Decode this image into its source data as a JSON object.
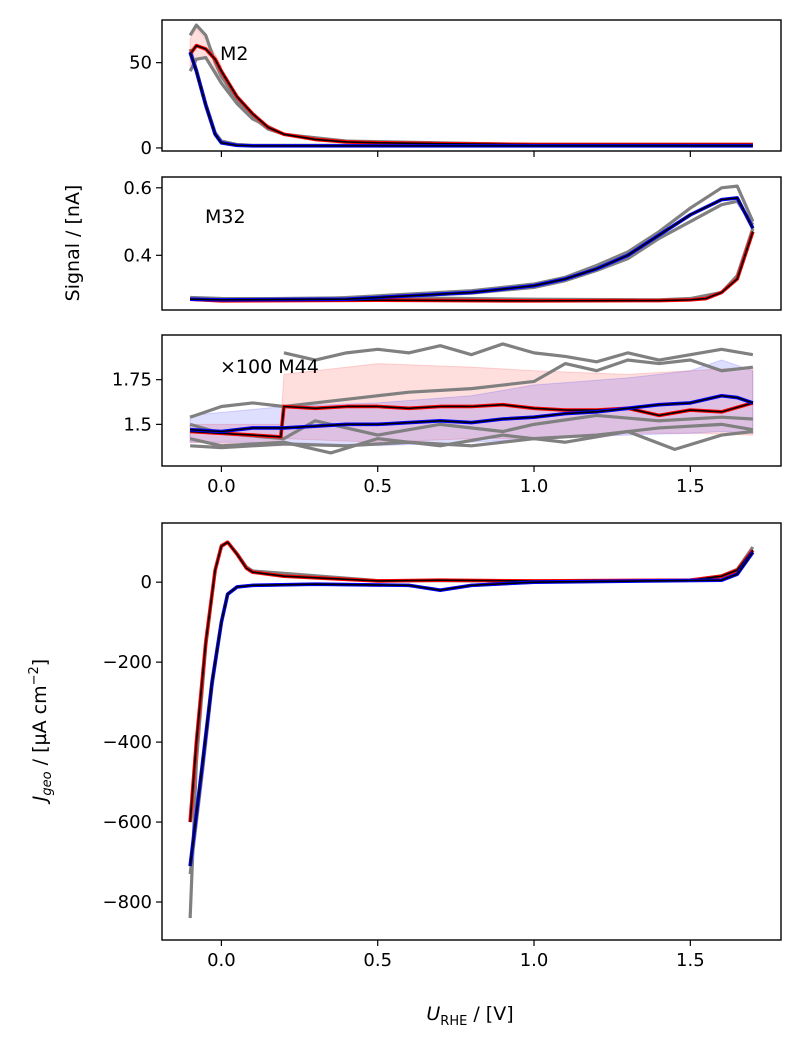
{
  "chart_data": [
    {
      "type": "line",
      "annotation": "M2",
      "ylim": [
        -1.8,
        75
      ],
      "yticks": [
        0,
        50
      ],
      "xlim": [
        -0.19,
        1.79
      ],
      "xticks": [
        0.0,
        0.5,
        1.0,
        1.5
      ],
      "show_xtick_labels": false,
      "grid": false,
      "series": [
        {
          "color": "#808080",
          "x": [
            -0.1,
            -0.08,
            -0.05,
            -0.02,
            0,
            0.05,
            0.1,
            0.15,
            0.2,
            0.3,
            0.5,
            1.0,
            1.7
          ],
          "y": [
            66,
            72,
            66,
            50,
            42,
            28,
            18,
            11,
            8,
            5,
            3,
            2,
            2
          ]
        },
        {
          "color": "#808080",
          "x": [
            -0.1,
            -0.08,
            -0.05,
            -0.02,
            0,
            0.05,
            0.1,
            0.2,
            0.4,
            1.0,
            1.7
          ],
          "y": [
            45,
            52,
            53,
            44,
            38,
            26,
            17,
            8,
            4,
            2,
            2
          ]
        },
        {
          "color": "#808080",
          "x": [
            -0.1,
            -0.08,
            -0.05,
            -0.02,
            0,
            0.05,
            0.1,
            0.3,
            1.0,
            1.7
          ],
          "y": [
            58,
            46,
            26,
            9,
            4,
            2,
            1.5,
            1.5,
            1.5,
            1.5
          ]
        },
        {
          "color": "#ff0000",
          "x": [
            -0.1,
            -0.08,
            -0.05,
            -0.02,
            0,
            0.05,
            0.1,
            0.15,
            0.2,
            0.3,
            0.4,
            0.5,
            0.7,
            1.0,
            1.7
          ],
          "y": [
            55,
            60,
            58,
            52,
            45,
            30,
            20,
            12,
            8,
            5,
            3.5,
            3,
            2.5,
            2,
            2
          ],
          "outline": "#000000"
        },
        {
          "color": "#0000ff",
          "x": [
            -0.1,
            -0.08,
            -0.05,
            -0.02,
            0,
            0.05,
            0.1,
            0.3,
            1.0,
            1.7
          ],
          "y": [
            56,
            45,
            25,
            8,
            3,
            1.5,
            1.2,
            1.2,
            1.2,
            1.2
          ],
          "outline": "#000000"
        }
      ],
      "bands": [
        {
          "color": "#ff0000",
          "x": [
            -0.1,
            -0.08,
            -0.05,
            -0.02,
            0
          ],
          "lower": [
            48,
            52,
            52,
            46,
            40
          ],
          "upper": [
            64,
            70,
            64,
            55,
            48
          ]
        }
      ]
    },
    {
      "type": "line",
      "annotation": "M32",
      "ylabel": "Signal / [nA]",
      "ylim": [
        0.238,
        0.632
      ],
      "yticks": [
        0.4,
        0.6
      ],
      "xlim": [
        -0.19,
        1.79
      ],
      "xticks": [],
      "grid": false,
      "series": [
        {
          "color": "#808080",
          "x": [
            -0.1,
            0,
            0.3,
            0.6,
            0.8,
            1.0,
            1.1,
            1.2,
            1.3,
            1.4,
            1.5,
            1.6,
            1.65,
            1.7
          ],
          "y": [
            0.275,
            0.272,
            0.27,
            0.285,
            0.295,
            0.315,
            0.335,
            0.37,
            0.41,
            0.47,
            0.54,
            0.6,
            0.605,
            0.5
          ]
        },
        {
          "color": "#808080",
          "x": [
            -0.1,
            0,
            0.3,
            0.6,
            0.8,
            1.0,
            1.1,
            1.2,
            1.3,
            1.4,
            1.5,
            1.6,
            1.65,
            1.7
          ],
          "y": [
            0.27,
            0.265,
            0.268,
            0.28,
            0.288,
            0.305,
            0.325,
            0.355,
            0.39,
            0.45,
            0.5,
            0.55,
            0.56,
            0.49
          ]
        },
        {
          "color": "#808080",
          "x": [
            -0.1,
            0.2,
            0.5,
            1.0,
            1.4,
            1.5,
            1.6,
            1.65,
            1.7
          ],
          "y": [
            0.27,
            0.272,
            0.275,
            0.27,
            0.268,
            0.272,
            0.29,
            0.34,
            0.48
          ]
        },
        {
          "color": "#ff0000",
          "x": [
            -0.1,
            0,
            0.2,
            0.5,
            1.0,
            1.4,
            1.5,
            1.55,
            1.6,
            1.65,
            1.7
          ],
          "y": [
            0.27,
            0.265,
            0.266,
            0.267,
            0.265,
            0.266,
            0.268,
            0.272,
            0.29,
            0.33,
            0.47
          ],
          "outline": "#000000"
        },
        {
          "color": "#0000ff",
          "x": [
            1.7,
            1.65,
            1.6,
            1.5,
            1.4,
            1.3,
            1.2,
            1.1,
            1.0,
            0.8,
            0.6,
            0.4,
            0,
            -0.1
          ],
          "y": [
            0.48,
            0.57,
            0.565,
            0.52,
            0.46,
            0.4,
            0.36,
            0.33,
            0.31,
            0.29,
            0.28,
            0.27,
            0.268,
            0.27
          ],
          "outline": "#000000"
        }
      ],
      "bands": []
    },
    {
      "type": "line",
      "annotation": "×100 M44",
      "ylim": [
        1.267,
        2.0
      ],
      "yticks": [
        1.5,
        1.75
      ],
      "xlim": [
        -0.19,
        1.79
      ],
      "xticks": [
        0.0,
        0.5,
        1.0,
        1.5
      ],
      "show_xtick_labels": true,
      "grid": false,
      "series": [
        {
          "color": "#808080",
          "x": [
            0.2,
            0.3,
            0.4,
            0.5,
            0.6,
            0.7,
            0.8,
            0.9,
            1.0,
            1.1,
            1.2,
            1.3,
            1.4,
            1.5,
            1.6,
            1.7
          ],
          "y": [
            1.9,
            1.86,
            1.9,
            1.92,
            1.9,
            1.94,
            1.89,
            1.95,
            1.9,
            1.88,
            1.85,
            1.9,
            1.86,
            1.89,
            1.92,
            1.89
          ]
        },
        {
          "color": "#808080",
          "x": [
            -0.1,
            0,
            0.1,
            0.2,
            0.4,
            0.6,
            0.8,
            0.9,
            1.0,
            1.1,
            1.2,
            1.3,
            1.4,
            1.5,
            1.6,
            1.7
          ],
          "y": [
            1.54,
            1.6,
            1.62,
            1.6,
            1.64,
            1.68,
            1.7,
            1.72,
            1.74,
            1.84,
            1.8,
            1.86,
            1.84,
            1.86,
            1.8,
            1.82
          ]
        },
        {
          "color": "#808080",
          "x": [
            -0.1,
            0,
            0.2,
            0.3,
            0.5,
            0.7,
            0.9,
            1.0,
            1.2,
            1.4,
            1.6,
            1.7
          ],
          "y": [
            1.5,
            1.45,
            1.42,
            1.52,
            1.44,
            1.5,
            1.46,
            1.5,
            1.55,
            1.52,
            1.54,
            1.53
          ]
        },
        {
          "color": "#808080",
          "x": [
            -0.1,
            0,
            0.2,
            0.35,
            0.5,
            0.7,
            0.9,
            1.1,
            1.3,
            1.45,
            1.6,
            1.7
          ],
          "y": [
            1.42,
            1.38,
            1.4,
            1.34,
            1.42,
            1.38,
            1.44,
            1.4,
            1.46,
            1.36,
            1.44,
            1.46
          ]
        },
        {
          "color": "#808080",
          "x": [
            -0.1,
            0,
            0.2,
            0.4,
            0.6,
            0.8,
            1.0,
            1.2,
            1.4,
            1.6,
            1.7
          ],
          "y": [
            1.38,
            1.37,
            1.39,
            1.38,
            1.4,
            1.38,
            1.42,
            1.44,
            1.48,
            1.5,
            1.47
          ]
        },
        {
          "color": "#ff0000",
          "x": [
            -0.1,
            0,
            0.1,
            0.19,
            0.2,
            0.3,
            0.4,
            0.5,
            0.6,
            0.7,
            0.8,
            0.9,
            1.0,
            1.1,
            1.2,
            1.3,
            1.4,
            1.5,
            1.6,
            1.7
          ],
          "y": [
            1.46,
            1.45,
            1.44,
            1.43,
            1.6,
            1.59,
            1.6,
            1.6,
            1.59,
            1.6,
            1.6,
            1.61,
            1.59,
            1.58,
            1.58,
            1.59,
            1.55,
            1.58,
            1.57,
            1.62
          ],
          "outline": "#000000"
        },
        {
          "color": "#0000ff",
          "x": [
            -0.1,
            0,
            0.1,
            0.2,
            0.3,
            0.4,
            0.5,
            0.6,
            0.7,
            0.8,
            0.9,
            1.0,
            1.1,
            1.2,
            1.3,
            1.4,
            1.5,
            1.6,
            1.65,
            1.7
          ],
          "y": [
            1.47,
            1.46,
            1.48,
            1.48,
            1.49,
            1.5,
            1.5,
            1.51,
            1.52,
            1.51,
            1.53,
            1.54,
            1.56,
            1.57,
            1.59,
            1.61,
            1.62,
            1.66,
            1.65,
            1.62
          ],
          "outline": "#000000"
        }
      ],
      "bands": [
        {
          "color": "#ff0000",
          "x": [
            -0.1,
            0.19,
            0.2,
            0.5,
            0.8,
            1.0,
            1.3,
            1.5,
            1.7
          ],
          "lower": [
            1.4,
            1.38,
            1.42,
            1.4,
            1.42,
            1.42,
            1.45,
            1.45,
            1.44
          ],
          "upper": [
            1.5,
            1.5,
            1.78,
            1.84,
            1.82,
            1.8,
            1.78,
            1.8,
            1.82
          ]
        },
        {
          "color": "#0000ff",
          "x": [
            -0.1,
            0.2,
            0.5,
            0.8,
            1.0,
            1.3,
            1.5,
            1.6,
            1.7
          ],
          "lower": [
            1.4,
            1.4,
            1.38,
            1.4,
            1.42,
            1.44,
            1.45,
            1.46,
            1.45
          ],
          "upper": [
            1.55,
            1.6,
            1.62,
            1.66,
            1.72,
            1.76,
            1.8,
            1.86,
            1.8
          ]
        }
      ]
    },
    {
      "type": "line",
      "ylabel": "J_geo / [µA cm^-2]",
      "ylabel_parts": {
        "main": "J",
        "sub": "geo",
        "rest": " / [µA cm",
        "sup": "−2",
        "end": "]"
      },
      "xlabel": "U_RHE / [V]",
      "xlabel_parts": {
        "main": "U",
        "sub": "RHE",
        "rest": " / [V]"
      },
      "ylim": [
        -895,
        148
      ],
      "yticks": [
        -800,
        -600,
        -400,
        -200,
        0
      ],
      "ytick_labels": [
        "−800",
        "−600",
        "−400",
        "−200",
        "0"
      ],
      "xlim": [
        -0.19,
        1.79
      ],
      "xticks": [
        0.0,
        0.5,
        1.0,
        1.5
      ],
      "show_xtick_labels": true,
      "grid": false,
      "series": [
        {
          "color": "#808080",
          "x": [
            -0.1,
            -0.08,
            -0.05,
            -0.02,
            0,
            0.02,
            0.05,
            0.08,
            0.1,
            0.2,
            0.5,
            1.0,
            1.5,
            1.6,
            1.65,
            1.7
          ],
          "y": [
            -840,
            -450,
            -160,
            30,
            92,
            100,
            72,
            38,
            28,
            22,
            4,
            3,
            5,
            16,
            32,
            88
          ]
        },
        {
          "color": "#808080",
          "x": [
            1.7,
            1.65,
            1.6,
            1.0,
            0.8,
            0.7,
            0.6,
            0.3,
            0.1,
            0.05,
            0.02,
            0,
            -0.03,
            -0.06,
            -0.1
          ],
          "y": [
            80,
            22,
            6,
            0,
            -8,
            -20,
            -8,
            -5,
            -8,
            -12,
            -30,
            -100,
            -260,
            -470,
            -730
          ]
        },
        {
          "color": "#ff0000",
          "x": [
            -0.1,
            -0.08,
            -0.05,
            -0.02,
            0,
            0.02,
            0.05,
            0.08,
            0.1,
            0.2,
            0.5,
            0.7,
            1.0,
            1.5,
            1.6,
            1.65,
            1.7
          ],
          "y": [
            -600,
            -400,
            -150,
            30,
            90,
            100,
            70,
            35,
            25,
            15,
            3,
            5,
            3,
            5,
            15,
            30,
            80
          ],
          "outline": "#000000"
        },
        {
          "color": "#0000ff",
          "x": [
            1.7,
            1.65,
            1.6,
            1.0,
            0.8,
            0.7,
            0.6,
            0.3,
            0.1,
            0.05,
            0.02,
            0,
            -0.03,
            -0.06,
            -0.1
          ],
          "y": [
            75,
            20,
            5,
            0,
            -8,
            -20,
            -8,
            -5,
            -8,
            -12,
            -30,
            -100,
            -250,
            -450,
            -710
          ],
          "outline": "#000000"
        }
      ],
      "bands": []
    }
  ]
}
